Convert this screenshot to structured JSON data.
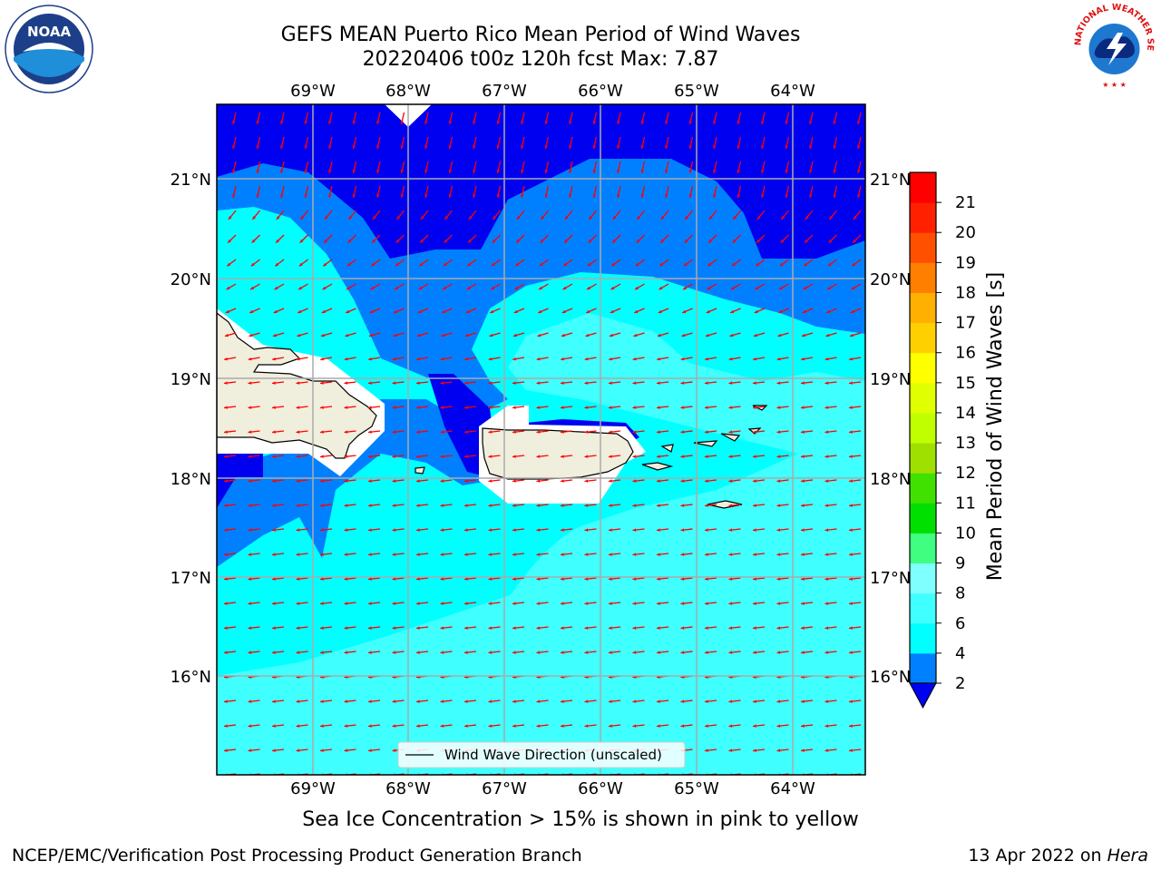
{
  "header": {
    "title_line1": "GEFS MEAN Puerto Rico Mean Period of Wind Waves",
    "title_line2": "20220406 t00z 120h fcst   Max: 7.87"
  },
  "map": {
    "lon_labels": [
      "69°W",
      "68°W",
      "67°W",
      "66°W",
      "65°W",
      "64°W"
    ],
    "lat_labels": [
      "21°N",
      "20°N",
      "19°N",
      "18°N",
      "17°N",
      "16°N"
    ],
    "legend_label": "Wind Wave Direction (unscaled)",
    "colors": {
      "land": "#f0eedc",
      "band_2_4": "#0000f0",
      "band_4_6": "#0080ff",
      "band_6_8": "#00ffff",
      "band_8_9": "#40ffff",
      "arrow": "#ff0000",
      "grid": "#aaaaaa"
    }
  },
  "colorbar": {
    "label": "Mean Period of Wind Waves [s]",
    "ticks": [
      "2",
      "4",
      "6",
      "8",
      "9",
      "10",
      "11",
      "12",
      "13",
      "14",
      "15",
      "16",
      "17",
      "18",
      "19",
      "20",
      "21"
    ],
    "colors": [
      "#0000f0",
      "#0080ff",
      "#00ffff",
      "#40ffff",
      "#80ffff",
      "#40ff80",
      "#00e000",
      "#40e000",
      "#a0e000",
      "#c0ff00",
      "#e0ff00",
      "#ffff00",
      "#ffd000",
      "#ffb000",
      "#ff8000",
      "#ff5000",
      "#ff2000",
      "#ff0000"
    ]
  },
  "subnote": "Sea Ice Concentration > 15% is shown in pink to yellow",
  "footer": {
    "left": "NCEP/EMC/Verification Post Processing Product Generation Branch",
    "right_prefix": "13 Apr 2022 on ",
    "right_host": "Hera"
  },
  "logos": {
    "noaa_text": "NOAA",
    "nws_text": "NATIONAL WEATHER SERVICE"
  }
}
